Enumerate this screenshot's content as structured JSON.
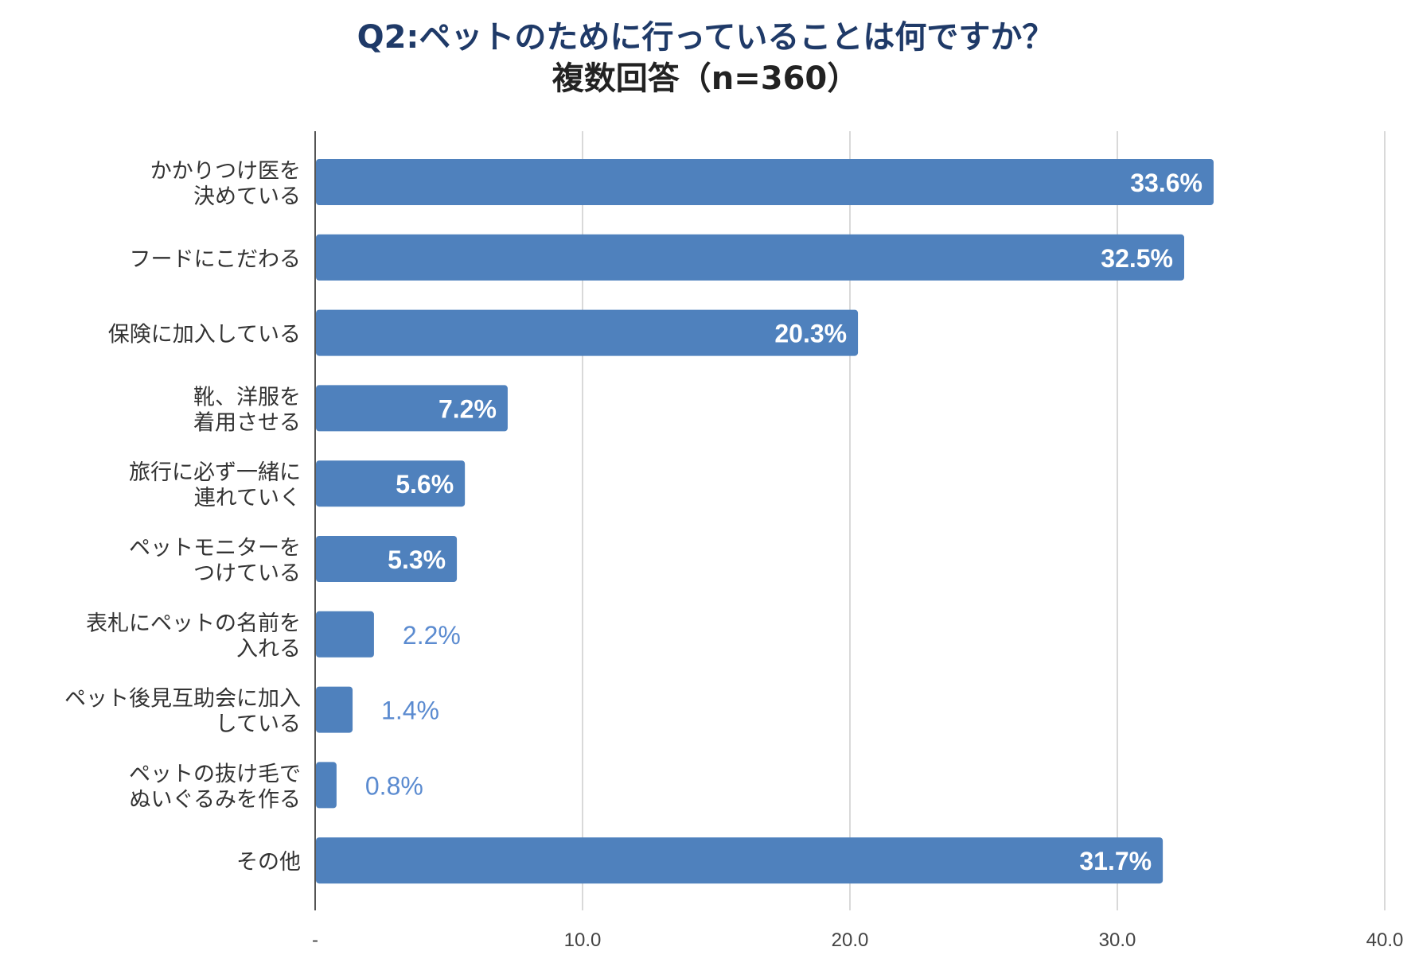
{
  "chart_data": {
    "type": "bar",
    "orientation": "horizontal",
    "title": "Q2:ペットのために行っていることは何ですか？",
    "subtitle": "複数回答（n=360）",
    "categories": [
      [
        "かかりつけ医を",
        "決めている"
      ],
      [
        "フードにこだわる"
      ],
      [
        "保険に加入している"
      ],
      [
        "靴、洋服を",
        "着用させる"
      ],
      [
        "旅行に必ず一緒に",
        "連れていく"
      ],
      [
        "ペットモニターを",
        "つけている"
      ],
      [
        "表札にペットの名前を",
        "入れる"
      ],
      [
        "ペット後見互助会に加入",
        "している"
      ],
      [
        "ペットの抜け毛で",
        "ぬいぐるみを作る"
      ],
      [
        "その他"
      ]
    ],
    "values": [
      33.6,
      32.5,
      20.3,
      7.2,
      5.6,
      5.3,
      2.2,
      1.4,
      0.8,
      31.7
    ],
    "value_labels": [
      "33.6%",
      "32.5%",
      "20.3%",
      "7.2%",
      "5.6%",
      "5.3%",
      "2.2%",
      "1.4%",
      "0.8%",
      "31.7%"
    ],
    "xlim": [
      0,
      40
    ],
    "x_ticks": [
      0,
      10,
      20,
      30,
      40
    ],
    "x_tick_labels": [
      "-",
      "10.0",
      "20.0",
      "30.0",
      "40.0"
    ],
    "grid": true,
    "legend": "none",
    "colors": {
      "bar": "#4f81bd",
      "label_inside": "#ffffff",
      "label_outside": "#5b8bd0",
      "grid": "#d9d9d9",
      "axis": "#555555",
      "category_text": "#333333",
      "tick_text": "#444444"
    }
  }
}
